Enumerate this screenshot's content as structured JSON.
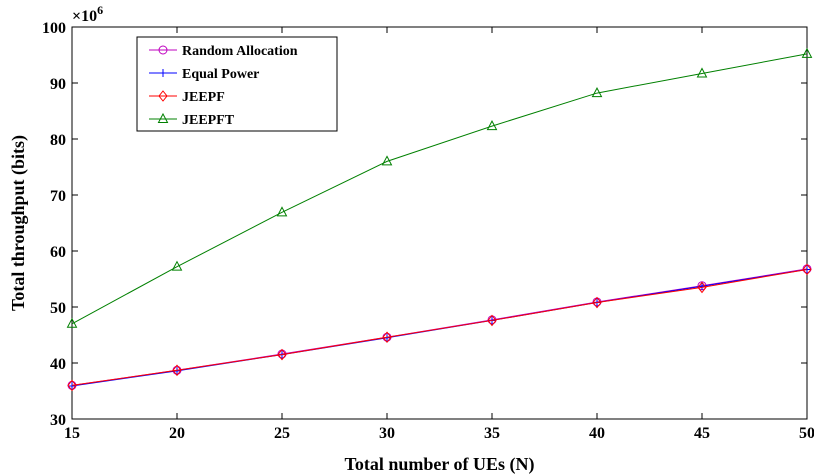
{
  "chart_data": {
    "type": "line",
    "xlabel": "Total number of UEs (N)",
    "ylabel": "Total throughput (bits)",
    "y_multiplier": "×10",
    "y_exponent": "6",
    "xlim": [
      15,
      50
    ],
    "ylim": [
      30,
      100
    ],
    "xticks": [
      15,
      20,
      25,
      30,
      35,
      40,
      45,
      50
    ],
    "yticks": [
      30,
      40,
      50,
      60,
      70,
      80,
      90,
      100
    ],
    "grid": false,
    "legend_position": "top-left",
    "x": [
      15,
      20,
      25,
      30,
      35,
      40,
      45,
      50
    ],
    "series": [
      {
        "name": "Random Allocation",
        "color": "#bf00bf",
        "marker": "circle",
        "values": [
          36.0,
          38.7,
          41.6,
          44.6,
          47.7,
          50.9,
          53.8,
          56.8
        ]
      },
      {
        "name": "Equal Power",
        "color": "#0000ff",
        "marker": "plus",
        "values": [
          35.9,
          38.6,
          41.5,
          44.5,
          47.6,
          50.8,
          53.7,
          56.7
        ]
      },
      {
        "name": "JEEPF",
        "color": "#ff0000",
        "marker": "diamond",
        "values": [
          36.0,
          38.7,
          41.5,
          44.6,
          47.6,
          50.8,
          53.5,
          56.7
        ]
      },
      {
        "name": "JEEPFT",
        "color": "#008000",
        "marker": "triangle",
        "values": [
          47.0,
          57.2,
          66.9,
          76.0,
          82.3,
          88.2,
          91.7,
          95.2
        ]
      }
    ]
  }
}
